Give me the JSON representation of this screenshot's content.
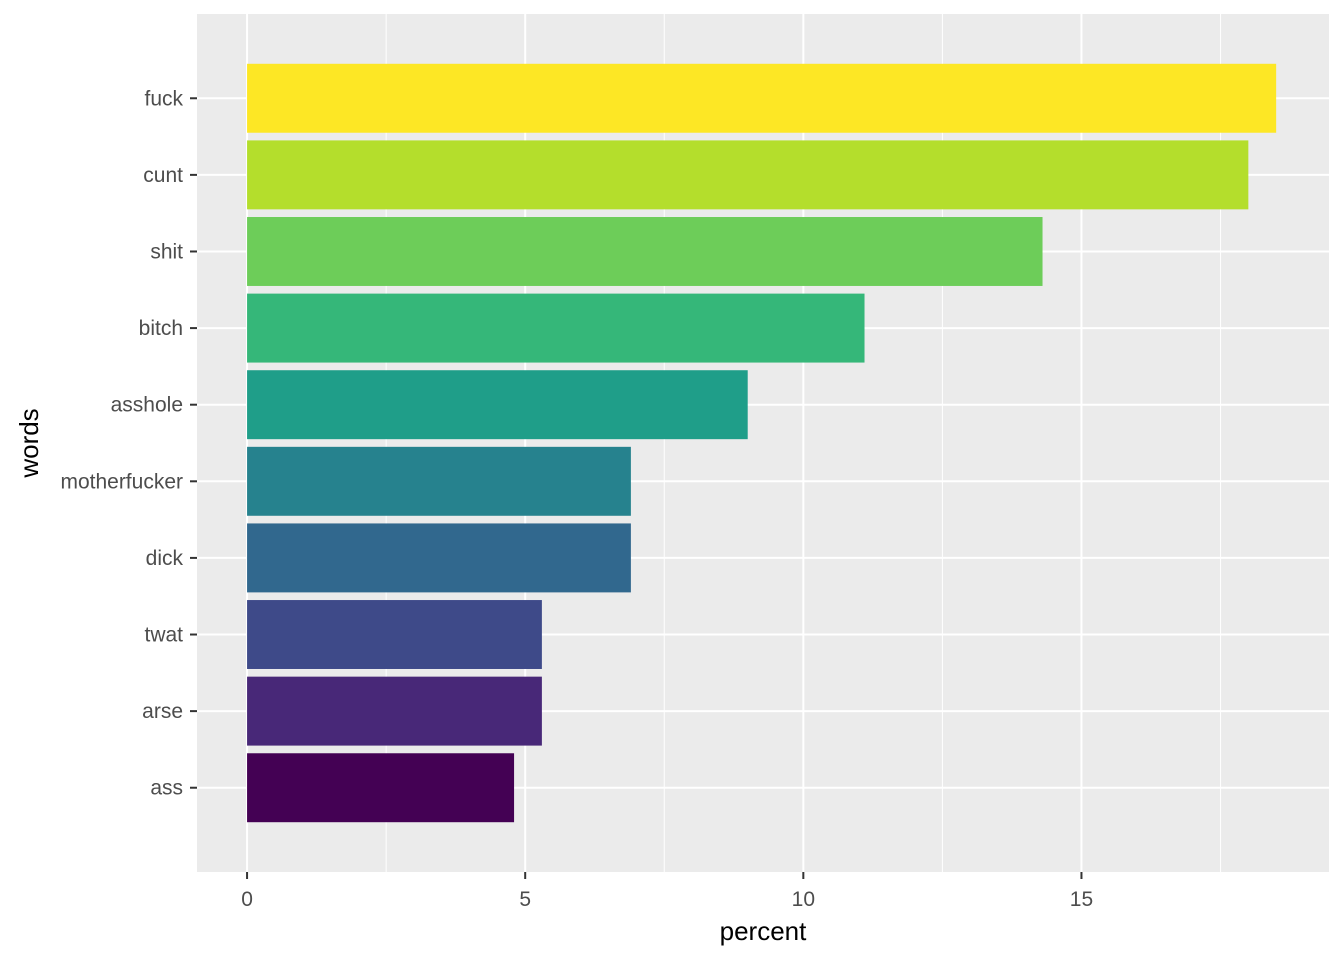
{
  "chart_data": {
    "type": "bar",
    "orientation": "horizontal",
    "xlabel": "percent",
    "ylabel": "words",
    "xlim": [
      -0.9,
      19.45
    ],
    "xticks": [
      0,
      5,
      10,
      15
    ],
    "grid": true,
    "legend": "none",
    "categories": [
      "fuck",
      "cunt",
      "shit",
      "bitch",
      "asshole",
      "motherfucker",
      "dick",
      "twat",
      "arse",
      "ass"
    ],
    "values": [
      18.5,
      18.0,
      14.3,
      11.1,
      9.0,
      6.9,
      6.9,
      5.3,
      5.3,
      4.8
    ],
    "colors": [
      "#FDE725",
      "#B4DE2C",
      "#6DCD59",
      "#35B779",
      "#1F9E89",
      "#26828E",
      "#31688E",
      "#3E4A89",
      "#482878",
      "#440154"
    ],
    "panel_background": "#EBEBEB",
    "gridline_color": "#FFFFFF"
  }
}
